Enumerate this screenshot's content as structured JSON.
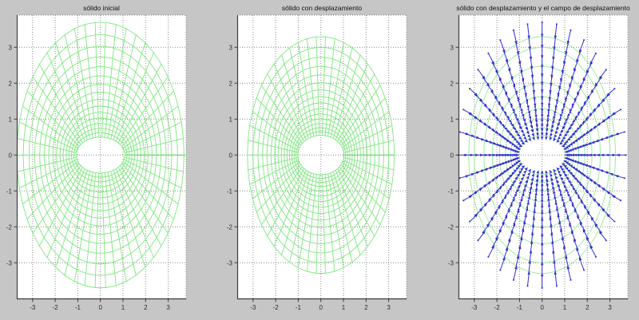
{
  "figure": {
    "bg_color": "#c6c6c6",
    "plot_bg_color": "#ffffff",
    "grid_color": "#8a8a8a",
    "spine_color": "#3c3c3c",
    "tick_label_color": "#2e2e2e",
    "mesh_green": "#80e680",
    "mesh_seam_green": "#5fd express",
    "ring_green": "#9dec9d",
    "quiver_blue": "#3030cf"
  },
  "chart_data": [
    {
      "type": "mesh",
      "title": "sólido inicial",
      "xlabel": "",
      "ylabel": "",
      "xlim": [
        -3.7,
        3.79
      ],
      "ylim": [
        -4.02,
        3.9
      ],
      "xticks": [
        -3,
        -2,
        -1,
        0,
        1,
        2,
        3
      ],
      "yticks": [
        3,
        2,
        1,
        0,
        -1,
        -2,
        -3
      ],
      "grid": "on",
      "line_color": "#80e680",
      "hole_semi_axes": [
        1.08,
        0.5
      ],
      "outer_semi_axes": [
        3.7,
        3.7
      ],
      "n_rings": 16,
      "n_spokes": 50,
      "ring_growth": 1.08
    },
    {
      "type": "mesh",
      "title": "sólido con desplazamiento",
      "xlabel": "",
      "ylabel": "",
      "xlim": [
        -3.7,
        3.79
      ],
      "ylim": [
        -4.02,
        3.9
      ],
      "xticks": [
        -3,
        -2,
        -1,
        0,
        1,
        2,
        3
      ],
      "yticks": [
        3,
        2,
        1,
        0,
        -1,
        -2,
        -3
      ],
      "grid": "on",
      "line_color": "#80e680",
      "hole_semi_axes": [
        1.02,
        0.55
      ],
      "outer_semi_axes": [
        3.25,
        3.3
      ],
      "n_rings": 16,
      "n_spokes": 50,
      "ring_growth": 1.08
    },
    {
      "type": "quiver",
      "title": "sólido con desplazamiento y el campo de desplazamiento",
      "xlabel": "",
      "ylabel": "",
      "xlim": [
        -3.7,
        3.79
      ],
      "ylim": [
        -4.02,
        3.9
      ],
      "xticks": [
        -3,
        -2,
        -1,
        0,
        1,
        2,
        3
      ],
      "yticks": [
        3,
        2,
        1,
        0,
        -1,
        -2,
        -3
      ],
      "grid": "on",
      "ring_color": "#9dec9d",
      "arrow_color": "#3030cf",
      "rings_hole_semi_axes": [
        1.02,
        0.55
      ],
      "rings_outer_semi_axes": [
        3.25,
        3.3
      ],
      "ring_indices": [
        0,
        2,
        4,
        6,
        8,
        10,
        12,
        14,
        15
      ],
      "n_rings": 16,
      "ring_growth": 1.08,
      "n_spokes": 36,
      "tail_hole_semi_axes": [
        1.08,
        0.5
      ],
      "tail_outer_semi_axes": [
        3.7,
        3.7
      ],
      "displacement_u": [
        0.08,
        0.34
      ],
      "arrow_direction": "inward"
    }
  ]
}
